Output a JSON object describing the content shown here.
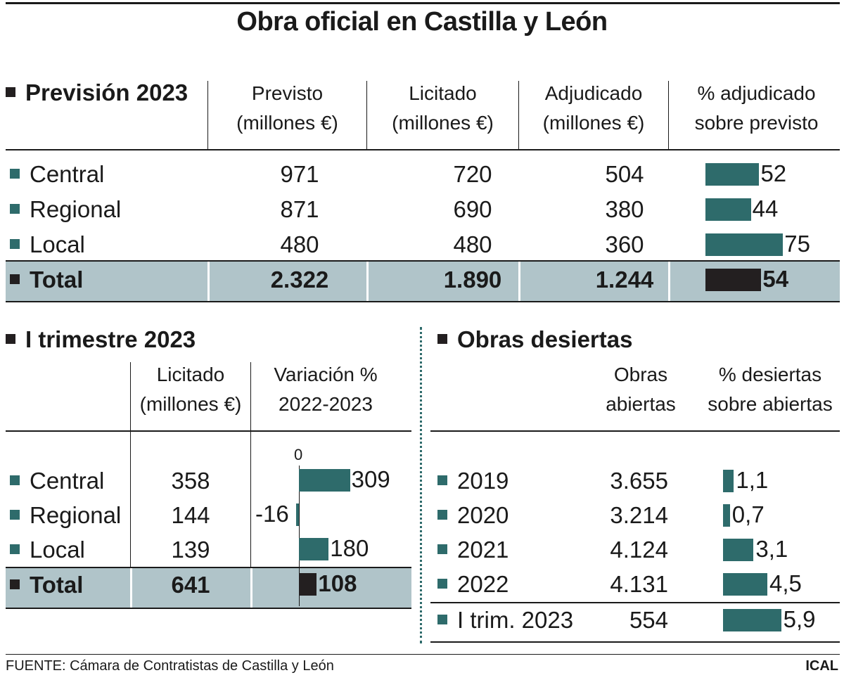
{
  "title": "Obra oficial en Castilla y León",
  "colors": {
    "teal": "#2e6b6b",
    "total": "#231f20",
    "total_bg": "#b0c4c9"
  },
  "prevision": {
    "heading": "Previsión 2023",
    "headers": [
      [
        "Previsto",
        "(millones €)"
      ],
      [
        "Licitado",
        "(millones €)"
      ],
      [
        "Adjudicado",
        "(millones €)"
      ],
      [
        "% adjudicado",
        "sobre previsto"
      ]
    ],
    "rows": [
      {
        "label": "Central",
        "previsto": "971",
        "licitado": "720",
        "adjudicado": "504",
        "pct": "52"
      },
      {
        "label": "Regional",
        "previsto": "871",
        "licitado": "690",
        "adjudicado": "380",
        "pct": "44"
      },
      {
        "label": "Local",
        "previsto": "480",
        "licitado": "480",
        "adjudicado": "360",
        "pct": "75"
      }
    ],
    "total": {
      "label": "Total",
      "previsto": "2.322",
      "licitado": "1.890",
      "adjudicado": "1.244",
      "pct": "54"
    }
  },
  "trimestre": {
    "heading": "I trimestre 2023",
    "headers": [
      [
        "Licitado",
        "(millones €)"
      ],
      [
        "Variación %",
        "2022-2023"
      ]
    ],
    "zero_label": "0",
    "rows": [
      {
        "label": "Central",
        "licitado": "358",
        "var": "309"
      },
      {
        "label": "Regional",
        "licitado": "144",
        "var": "-16"
      },
      {
        "label": "Local",
        "licitado": "139",
        "var": "180"
      }
    ],
    "total": {
      "label": "Total",
      "licitado": "641",
      "var": "108"
    }
  },
  "desiertas": {
    "heading": "Obras desiertas",
    "headers": [
      [
        "Obras",
        "abiertas"
      ],
      [
        "% desiertas",
        "sobre abiertas"
      ]
    ],
    "rows": [
      {
        "label": "2019",
        "abiertas": "3.655",
        "pct": "1,1"
      },
      {
        "label": "2020",
        "abiertas": "3.214",
        "pct": "0,7"
      },
      {
        "label": "2021",
        "abiertas": "4.124",
        "pct": "3,1"
      },
      {
        "label": "2022",
        "abiertas": "4.131",
        "pct": "4,5"
      },
      {
        "label": "I trim. 2023",
        "abiertas": "554",
        "pct": "5,9"
      }
    ]
  },
  "source": "FUENTE: Cámara de Contratistas de Castilla y León",
  "credit": "ICAL",
  "chart_data": [
    {
      "type": "bar",
      "title": "% adjudicado sobre previsto",
      "categories": [
        "Central",
        "Regional",
        "Local",
        "Total"
      ],
      "values": [
        52,
        44,
        75,
        54
      ]
    },
    {
      "type": "bar",
      "title": "Variación % 2022-2023",
      "categories": [
        "Central",
        "Regional",
        "Local",
        "Total"
      ],
      "values": [
        309,
        -16,
        180,
        108
      ]
    },
    {
      "type": "bar",
      "title": "% desiertas sobre abiertas",
      "categories": [
        "2019",
        "2020",
        "2021",
        "2022",
        "I trim. 2023"
      ],
      "values": [
        1.1,
        0.7,
        3.1,
        4.5,
        5.9
      ]
    }
  ]
}
